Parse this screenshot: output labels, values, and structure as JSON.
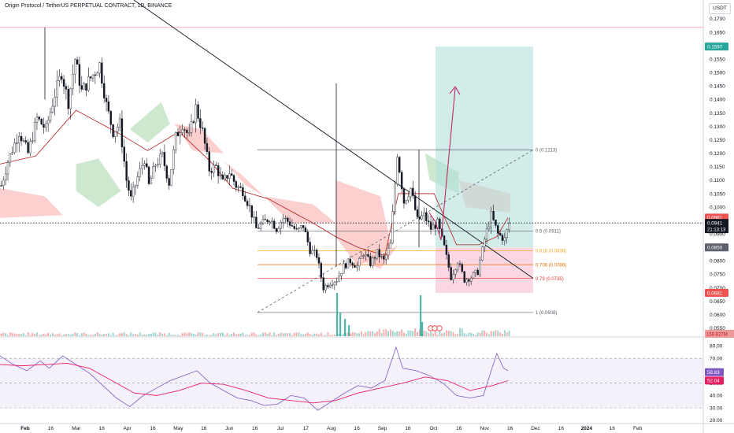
{
  "header": {
    "symbol": "Origin Protocol / TetherUS PERPETUAL CONTRACT, 1D, BINANCE",
    "currency": "USDT"
  },
  "colors": {
    "up": "#26a69a",
    "down": "#ef5350",
    "candle": "#131722",
    "cloud_bull": "#a5d6a7",
    "cloud_bear": "#f7a9a8",
    "baseline": "#b71c1c",
    "target_zone": "#b2dfdb",
    "stop_zone": "#f8bbd0",
    "rsi_line": "#7e57c2",
    "rsi_ma": "#e91e63",
    "fib_yellow": "#f9a825",
    "fib_orange": "#ef6c00",
    "fib_red": "#e53935",
    "arrow": "#c2185b"
  },
  "chart_data": [
    {
      "type": "candlestick",
      "y_scale": "linear",
      "ylim": [
        0.052,
        0.177
      ],
      "y_ticks": [
        "0.1750",
        "0.1700",
        "0.1650",
        "0.1600",
        "0.1550",
        "0.1500",
        "0.1450",
        "0.1400",
        "0.1350",
        "0.1300",
        "0.1250",
        "0.1200",
        "0.1150",
        "0.1100",
        "0.1050",
        "0.1000",
        "0.0950",
        "0.0900",
        "0.0850",
        "0.0800",
        "0.0750",
        "0.0700",
        "0.0650",
        "0.0600",
        "0.0550"
      ],
      "x_ticks": [
        "Feb",
        "16",
        "Mar",
        "16",
        "Apr",
        "16",
        "May",
        "16",
        "Jun",
        "16",
        "Jul",
        "17",
        "Aug",
        "16",
        "Sep",
        "16",
        "Oct",
        "16",
        "Nov",
        "16",
        "Dec",
        "16",
        "2024",
        "16",
        "Feb"
      ],
      "price_path": [
        [
          0,
          0.108
        ],
        [
          3,
          0.117
        ],
        [
          8,
          0.128
        ],
        [
          12,
          0.12
        ],
        [
          16,
          0.133
        ],
        [
          20,
          0.129
        ],
        [
          24,
          0.142
        ],
        [
          27,
          0.15
        ],
        [
          30,
          0.139
        ],
        [
          33,
          0.155
        ],
        [
          36,
          0.143
        ],
        [
          40,
          0.148
        ],
        [
          44,
          0.153
        ],
        [
          47,
          0.138
        ],
        [
          50,
          0.128
        ],
        [
          53,
          0.131
        ],
        [
          56,
          0.11
        ],
        [
          58,
          0.103
        ],
        [
          61,
          0.111
        ],
        [
          64,
          0.118
        ],
        [
          66,
          0.108
        ],
        [
          69,
          0.116
        ],
        [
          72,
          0.119
        ],
        [
          75,
          0.109
        ],
        [
          78,
          0.126
        ],
        [
          81,
          0.131
        ],
        [
          84,
          0.126
        ],
        [
          87,
          0.137
        ],
        [
          90,
          0.128
        ],
        [
          93,
          0.114
        ],
        [
          96,
          0.115
        ],
        [
          99,
          0.109
        ],
        [
          102,
          0.113
        ],
        [
          105,
          0.108
        ],
        [
          108,
          0.106
        ],
        [
          111,
          0.1
        ],
        [
          114,
          0.092
        ],
        [
          117,
          0.094
        ],
        [
          120,
          0.096
        ],
        [
          123,
          0.092
        ],
        [
          126,
          0.096
        ],
        [
          129,
          0.094
        ],
        [
          132,
          0.091
        ],
        [
          135,
          0.093
        ],
        [
          138,
          0.084
        ],
        [
          141,
          0.082
        ],
        [
          144,
          0.07
        ],
        [
          147,
          0.072
        ],
        [
          150,
          0.073
        ],
        [
          153,
          0.078
        ],
        [
          156,
          0.08
        ],
        [
          159,
          0.078
        ],
        [
          162,
          0.083
        ],
        [
          165,
          0.079
        ],
        [
          168,
          0.083
        ],
        [
          171,
          0.08
        ],
        [
          174,
          0.086
        ],
        [
          177,
          0.12
        ],
        [
          180,
          0.102
        ],
        [
          183,
          0.107
        ],
        [
          186,
          0.095
        ],
        [
          189,
          0.097
        ],
        [
          192,
          0.092
        ],
        [
          195,
          0.094
        ],
        [
          198,
          0.085
        ],
        [
          201,
          0.074
        ],
        [
          204,
          0.08
        ],
        [
          207,
          0.073
        ],
        [
          210,
          0.074
        ],
        [
          213,
          0.076
        ],
        [
          216,
          0.088
        ],
        [
          219,
          0.097
        ],
        [
          222,
          0.09
        ],
        [
          225,
          0.088
        ],
        [
          227,
          0.094
        ]
      ],
      "target_price": "0.1597",
      "last_price": "0.0941",
      "countdown": "21:13:13",
      "price_labels": [
        {
          "text": "0.0961",
          "color": "#ef5350",
          "value": 0.0961
        },
        {
          "text": "0.0850",
          "color": "#5d606b",
          "value": 0.085
        },
        {
          "text": "0.0681",
          "color": "#ef5350",
          "value": 0.0681
        }
      ],
      "fib_levels": [
        {
          "label": "0 (0.1213)",
          "value": 0.1213,
          "color": "#5d606b"
        },
        {
          "label": "0.5 (0.0911)",
          "value": 0.0911,
          "color": "#5d606b"
        },
        {
          "label": "0.618 (0.0838)",
          "value": 0.0838,
          "color": "#f9a825"
        },
        {
          "label": "0.706 (0.0786)",
          "value": 0.0786,
          "color": "#ef6c00"
        },
        {
          "label": "0.79 (0.0735)",
          "value": 0.0735,
          "color": "#e53935"
        },
        {
          "label": "1 (0.0608)",
          "value": 0.0608,
          "color": "#5d606b"
        }
      ],
      "volume_label": "158.827M",
      "horizontal_line": 0.1668,
      "position": {
        "entry": 0.085,
        "target": 0.1597,
        "stop": 0.0681
      }
    },
    {
      "type": "line",
      "name": "RSI",
      "ylim": [
        18,
        86
      ],
      "y_ticks": [
        "80.00",
        "70.00",
        "60.00",
        "50.00",
        "40.00",
        "30.00",
        "20.00"
      ],
      "bands": [
        70,
        50,
        30
      ],
      "rsi_value": "58.83",
      "ma_value": "52.04",
      "rsi_path": [
        [
          0,
          72
        ],
        [
          6,
          65
        ],
        [
          12,
          60
        ],
        [
          18,
          68
        ],
        [
          22,
          62
        ],
        [
          28,
          72
        ],
        [
          34,
          65
        ],
        [
          40,
          58
        ],
        [
          46,
          48
        ],
        [
          52,
          38
        ],
        [
          58,
          31
        ],
        [
          64,
          40
        ],
        [
          70,
          46
        ],
        [
          76,
          52
        ],
        [
          82,
          56
        ],
        [
          88,
          60
        ],
        [
          94,
          50
        ],
        [
          100,
          44
        ],
        [
          106,
          38
        ],
        [
          112,
          36
        ],
        [
          118,
          32
        ],
        [
          124,
          33
        ],
        [
          130,
          40
        ],
        [
          136,
          38
        ],
        [
          142,
          28
        ],
        [
          148,
          35
        ],
        [
          154,
          42
        ],
        [
          160,
          48
        ],
        [
          166,
          46
        ],
        [
          172,
          52
        ],
        [
          177,
          79
        ],
        [
          180,
          62
        ],
        [
          186,
          60
        ],
        [
          192,
          56
        ],
        [
          198,
          50
        ],
        [
          204,
          40
        ],
        [
          210,
          38
        ],
        [
          216,
          40
        ],
        [
          222,
          74
        ],
        [
          225,
          62
        ],
        [
          227,
          60
        ]
      ],
      "ma_path": [
        [
          0,
          65
        ],
        [
          10,
          64
        ],
        [
          20,
          65
        ],
        [
          30,
          66
        ],
        [
          40,
          62
        ],
        [
          50,
          52
        ],
        [
          60,
          42
        ],
        [
          70,
          40
        ],
        [
          80,
          44
        ],
        [
          90,
          50
        ],
        [
          100,
          49
        ],
        [
          110,
          44
        ],
        [
          120,
          38
        ],
        [
          130,
          36
        ],
        [
          140,
          34
        ],
        [
          150,
          36
        ],
        [
          160,
          42
        ],
        [
          170,
          46
        ],
        [
          180,
          50
        ],
        [
          190,
          55
        ],
        [
          200,
          52
        ],
        [
          210,
          44
        ],
        [
          220,
          48
        ],
        [
          227,
          52
        ]
      ]
    }
  ]
}
